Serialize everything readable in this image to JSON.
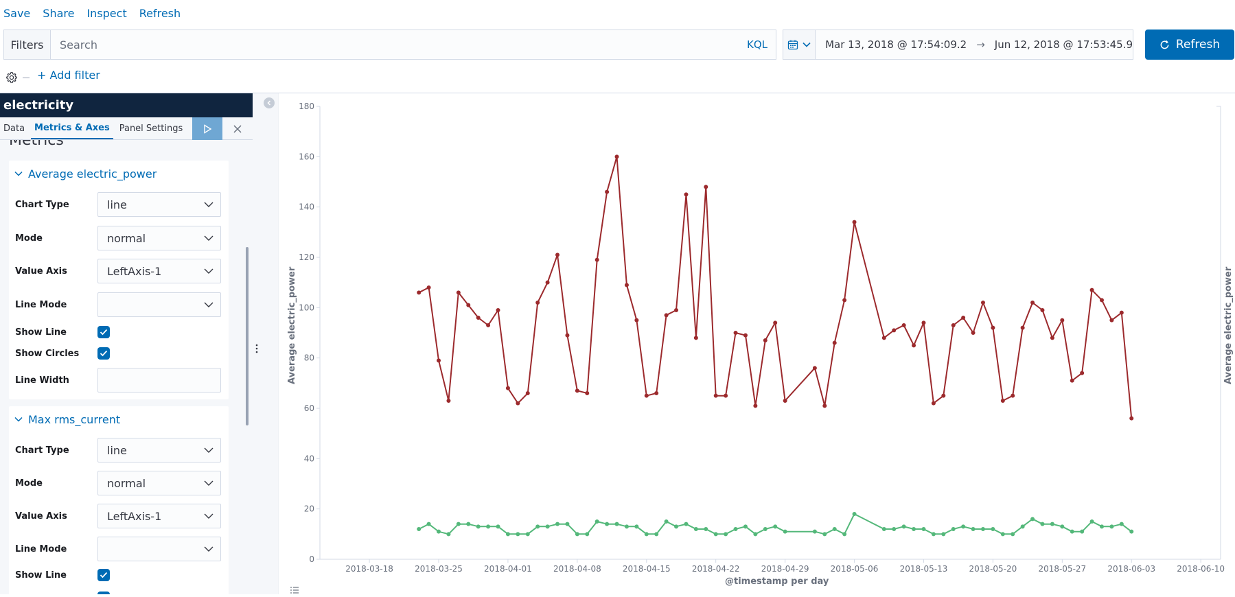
{
  "topnav": {
    "save": "Save",
    "share": "Share",
    "inspect": "Inspect",
    "refresh": "Refresh"
  },
  "querybar": {
    "filters_label": "Filters",
    "search_placeholder": "Search",
    "language": "KQL"
  },
  "datepicker": {
    "start": "Mar 13, 2018 @ 17:54:09.2",
    "arrow": "→",
    "end": "Jun 12, 2018 @ 17:53:45.9"
  },
  "refresh_button": {
    "label": "Refresh"
  },
  "filter_bar": {
    "add_filter": "+ Add filter"
  },
  "sidebar": {
    "title": "electricity",
    "tabs": [
      "Data",
      "Metrics & Axes",
      "Panel Settings"
    ],
    "active_tab": "Metrics & Axes",
    "section_heading": "Metrics",
    "metrics": [
      {
        "name": "Average electric_power",
        "chart_type_label": "Chart Type",
        "chart_type": "line",
        "mode_label": "Mode",
        "mode": "normal",
        "value_axis_label": "Value Axis",
        "value_axis": "LeftAxis-1",
        "line_mode_label": "Line Mode",
        "line_mode": "",
        "show_line_label": "Show Line",
        "show_line": true,
        "show_circles_label": "Show Circles",
        "show_circles": true,
        "line_width_label": "Line Width",
        "line_width": ""
      },
      {
        "name": "Max rms_current",
        "chart_type_label": "Chart Type",
        "chart_type": "line",
        "mode_label": "Mode",
        "mode": "normal",
        "value_axis_label": "Value Axis",
        "value_axis": "LeftAxis-1",
        "line_mode_label": "Line Mode",
        "line_mode": "",
        "show_line_label": "Show Line",
        "show_line": true
      }
    ]
  },
  "colors": {
    "accent": "#006bb4",
    "series_power": "#9c2a2d",
    "series_current": "#54b87a",
    "sidebar_header": "#10253f"
  },
  "chart_data": {
    "type": "line",
    "xlabel": "@timestamp per day",
    "ylabel": "Average electric_power",
    "ylabel_right": "Average electric_power",
    "ylim": [
      0,
      180
    ],
    "yticks": [
      0,
      20,
      40,
      60,
      80,
      100,
      120,
      140,
      160,
      180
    ],
    "xlim": [
      "2018-03-13",
      "2018-06-12"
    ],
    "xticks": [
      "2018-03-18",
      "2018-03-25",
      "2018-04-01",
      "2018-04-08",
      "2018-04-15",
      "2018-04-22",
      "2018-04-29",
      "2018-05-06",
      "2018-05-13",
      "2018-05-20",
      "2018-05-27",
      "2018-06-03",
      "2018-06-10"
    ],
    "grid": false,
    "series": [
      {
        "color": "#9c2a2d",
        "points": [
          [
            "2018-03-23",
            106
          ],
          [
            "2018-03-24",
            108
          ],
          [
            "2018-03-25",
            79
          ],
          [
            "2018-03-26",
            63
          ],
          [
            "2018-03-27",
            106
          ],
          [
            "2018-03-28",
            101
          ],
          [
            "2018-03-29",
            96
          ],
          [
            "2018-03-30",
            93
          ],
          [
            "2018-03-31",
            99
          ],
          [
            "2018-04-01",
            68
          ],
          [
            "2018-04-02",
            62
          ],
          [
            "2018-04-03",
            66
          ],
          [
            "2018-04-04",
            102
          ],
          [
            "2018-04-05",
            110
          ],
          [
            "2018-04-06",
            121
          ],
          [
            "2018-04-07",
            89
          ],
          [
            "2018-04-08",
            67
          ],
          [
            "2018-04-09",
            66
          ],
          [
            "2018-04-10",
            119
          ],
          [
            "2018-04-11",
            146
          ],
          [
            "2018-04-12",
            160
          ],
          [
            "2018-04-13",
            109
          ],
          [
            "2018-04-14",
            95
          ],
          [
            "2018-04-15",
            65
          ],
          [
            "2018-04-16",
            66
          ],
          [
            "2018-04-17",
            97
          ],
          [
            "2018-04-18",
            99
          ],
          [
            "2018-04-19",
            145
          ],
          [
            "2018-04-20",
            88
          ],
          [
            "2018-04-21",
            148
          ],
          [
            "2018-04-22",
            65
          ],
          [
            "2018-04-23",
            65
          ],
          [
            "2018-04-24",
            90
          ],
          [
            "2018-04-25",
            89
          ],
          [
            "2018-04-26",
            61
          ],
          [
            "2018-04-27",
            87
          ],
          [
            "2018-04-28",
            94
          ],
          [
            "2018-04-29",
            63
          ],
          [
            "2018-05-02",
            76
          ],
          [
            "2018-05-03",
            61
          ],
          [
            "2018-05-04",
            86
          ],
          [
            "2018-05-05",
            103
          ],
          [
            "2018-05-06",
            134
          ],
          [
            "2018-05-09",
            88
          ],
          [
            "2018-05-10",
            91
          ],
          [
            "2018-05-11",
            93
          ],
          [
            "2018-05-12",
            85
          ],
          [
            "2018-05-13",
            94
          ],
          [
            "2018-05-14",
            62
          ],
          [
            "2018-05-15",
            65
          ],
          [
            "2018-05-16",
            93
          ],
          [
            "2018-05-17",
            96
          ],
          [
            "2018-05-18",
            90
          ],
          [
            "2018-05-19",
            102
          ],
          [
            "2018-05-20",
            92
          ],
          [
            "2018-05-21",
            63
          ],
          [
            "2018-05-22",
            65
          ],
          [
            "2018-05-23",
            92
          ],
          [
            "2018-05-24",
            102
          ],
          [
            "2018-05-25",
            99
          ],
          [
            "2018-05-26",
            88
          ],
          [
            "2018-05-27",
            95
          ],
          [
            "2018-05-28",
            71
          ],
          [
            "2018-05-29",
            74
          ],
          [
            "2018-05-30",
            107
          ],
          [
            "2018-05-31",
            103
          ],
          [
            "2018-06-01",
            95
          ],
          [
            "2018-06-02",
            98
          ],
          [
            "2018-06-03",
            56
          ]
        ]
      },
      {
        "color": "#54b87a",
        "points": [
          [
            "2018-03-23",
            12
          ],
          [
            "2018-03-24",
            14
          ],
          [
            "2018-03-25",
            11
          ],
          [
            "2018-03-26",
            10
          ],
          [
            "2018-03-27",
            14
          ],
          [
            "2018-03-28",
            14
          ],
          [
            "2018-03-29",
            13
          ],
          [
            "2018-03-30",
            13
          ],
          [
            "2018-03-31",
            13
          ],
          [
            "2018-04-01",
            10
          ],
          [
            "2018-04-02",
            10
          ],
          [
            "2018-04-03",
            10
          ],
          [
            "2018-04-04",
            13
          ],
          [
            "2018-04-05",
            13
          ],
          [
            "2018-04-06",
            14
          ],
          [
            "2018-04-07",
            14
          ],
          [
            "2018-04-08",
            10
          ],
          [
            "2018-04-09",
            10
          ],
          [
            "2018-04-10",
            15
          ],
          [
            "2018-04-11",
            14
          ],
          [
            "2018-04-12",
            14
          ],
          [
            "2018-04-13",
            13
          ],
          [
            "2018-04-14",
            13
          ],
          [
            "2018-04-15",
            10
          ],
          [
            "2018-04-16",
            10
          ],
          [
            "2018-04-17",
            15
          ],
          [
            "2018-04-18",
            13
          ],
          [
            "2018-04-19",
            14
          ],
          [
            "2018-04-20",
            12
          ],
          [
            "2018-04-21",
            12
          ],
          [
            "2018-04-22",
            10
          ],
          [
            "2018-04-23",
            10
          ],
          [
            "2018-04-24",
            12
          ],
          [
            "2018-04-25",
            13
          ],
          [
            "2018-04-26",
            10
          ],
          [
            "2018-04-27",
            12
          ],
          [
            "2018-04-28",
            13
          ],
          [
            "2018-04-29",
            11
          ],
          [
            "2018-05-02",
            11
          ],
          [
            "2018-05-03",
            10
          ],
          [
            "2018-05-04",
            12
          ],
          [
            "2018-05-05",
            10
          ],
          [
            "2018-05-06",
            18
          ],
          [
            "2018-05-09",
            12
          ],
          [
            "2018-05-10",
            12
          ],
          [
            "2018-05-11",
            13
          ],
          [
            "2018-05-12",
            12
          ],
          [
            "2018-05-13",
            12
          ],
          [
            "2018-05-14",
            10
          ],
          [
            "2018-05-15",
            10
          ],
          [
            "2018-05-16",
            12
          ],
          [
            "2018-05-17",
            13
          ],
          [
            "2018-05-18",
            12
          ],
          [
            "2018-05-19",
            12
          ],
          [
            "2018-05-20",
            12
          ],
          [
            "2018-05-21",
            10
          ],
          [
            "2018-05-22",
            10
          ],
          [
            "2018-05-23",
            13
          ],
          [
            "2018-05-24",
            16
          ],
          [
            "2018-05-25",
            14
          ],
          [
            "2018-05-26",
            14
          ],
          [
            "2018-05-27",
            13
          ],
          [
            "2018-05-28",
            11
          ],
          [
            "2018-05-29",
            11
          ],
          [
            "2018-05-30",
            15
          ],
          [
            "2018-05-31",
            13
          ],
          [
            "2018-06-01",
            13
          ],
          [
            "2018-06-02",
            14
          ],
          [
            "2018-06-03",
            11
          ]
        ]
      }
    ]
  }
}
